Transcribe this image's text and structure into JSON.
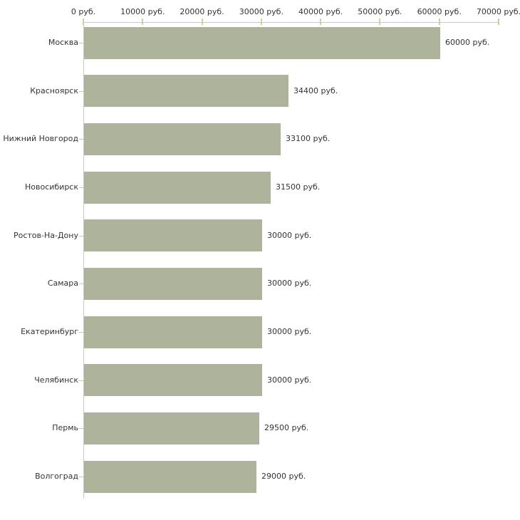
{
  "chart_data": {
    "type": "bar",
    "orientation": "horizontal",
    "title": "",
    "xlabel": "",
    "ylabel": "",
    "categories": [
      "Москва",
      "Красноярск",
      "Нижний Новгород",
      "Новосибирск",
      "Ростов-На-Дону",
      "Самара",
      "Екатеринбург",
      "Челябинск",
      "Пермь",
      "Волгоград"
    ],
    "values": [
      60000,
      34400,
      33100,
      31500,
      30000,
      30000,
      30000,
      30000,
      29500,
      29000
    ],
    "value_labels": [
      "60000 руб.",
      "34400 руб.",
      "33100 руб.",
      "31500 руб.",
      "30000 руб.",
      "30000 руб.",
      "30000 руб.",
      "30000 руб.",
      "29500 руб.",
      "29000 руб."
    ],
    "x_ticks": [
      0,
      10000,
      20000,
      30000,
      40000,
      50000,
      60000,
      70000
    ],
    "x_tick_labels": [
      "0 руб.",
      "10000 руб.",
      "20000 руб.",
      "30000 руб.",
      "40000 руб.",
      "50000 руб.",
      "60000 руб.",
      "70000 руб."
    ],
    "xlim": [
      0,
      70000
    ],
    "grid": false,
    "legend": null,
    "colors": {
      "bar": "#aeb39b",
      "axis_line": "#c8c8c8",
      "tick": "#cfcf9c",
      "category_tick": "#c6c6a8",
      "text": "#333333",
      "background": "#ffffff"
    }
  }
}
